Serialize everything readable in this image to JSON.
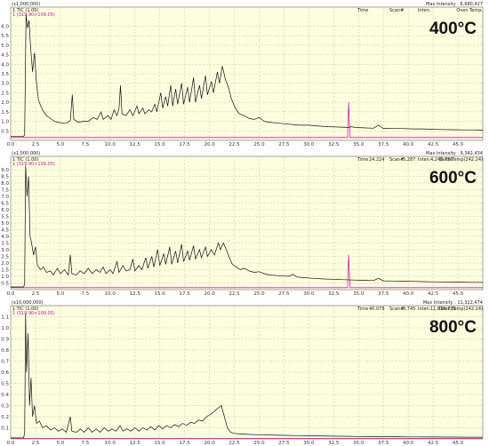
{
  "chart_data": [
    {
      "type": "line",
      "label": "400°C",
      "scale": "(x1,000,000)",
      "trace_tic": "1 TIC (1.00)",
      "trace_mz": "1 (319.90>109.05)",
      "header": {
        "time": "Time",
        "scan": "Scan#",
        "inten": "Inten.",
        "max": "Max Intensity : 6,680,427",
        "oven": "Oven Temp."
      },
      "yticks": [
        "0.5",
        "1.0",
        "1.5",
        "2.0",
        "2.5",
        "3.0",
        "3.5",
        "4.0",
        "4.5",
        "5.0",
        "5.5",
        "6.0"
      ],
      "ylim": [
        0,
        7.0
      ],
      "xlim": [
        0,
        47.5
      ],
      "xticks": [
        "0.0",
        "2.5",
        "5.0",
        "7.5",
        "10.0",
        "12.5",
        "15.0",
        "17.5",
        "20.0",
        "22.5",
        "25.0",
        "27.5",
        "30.0",
        "32.5",
        "35.0",
        "37.5",
        "40.0",
        "42.5",
        "45.0"
      ],
      "tic": [
        [
          0,
          0.2
        ],
        [
          1.3,
          0.2
        ],
        [
          1.4,
          0.3
        ],
        [
          1.55,
          6.6
        ],
        [
          1.7,
          5.9
        ],
        [
          1.85,
          6.3
        ],
        [
          2.0,
          4.9
        ],
        [
          2.2,
          3.6
        ],
        [
          2.4,
          4.6
        ],
        [
          2.6,
          3.0
        ],
        [
          2.8,
          2.1
        ],
        [
          3.2,
          1.6
        ],
        [
          3.6,
          1.3
        ],
        [
          4.0,
          1.15
        ],
        [
          4.4,
          1.0
        ],
        [
          4.8,
          0.95
        ],
        [
          5.2,
          0.9
        ],
        [
          5.6,
          0.9
        ],
        [
          6.0,
          1.05
        ],
        [
          6.2,
          2.4
        ],
        [
          6.35,
          1.1
        ],
        [
          6.8,
          0.95
        ],
        [
          7.3,
          1.0
        ],
        [
          7.8,
          1.0
        ],
        [
          8.3,
          1.2
        ],
        [
          8.7,
          1.1
        ],
        [
          9.1,
          1.5
        ],
        [
          9.3,
          1.1
        ],
        [
          9.8,
          1.3
        ],
        [
          10.1,
          1.1
        ],
        [
          10.4,
          1.6
        ],
        [
          10.7,
          1.3
        ],
        [
          10.9,
          1.7
        ],
        [
          11.05,
          2.9
        ],
        [
          11.2,
          1.4
        ],
        [
          11.6,
          1.3
        ],
        [
          12.0,
          1.6
        ],
        [
          12.3,
          1.3
        ],
        [
          12.7,
          1.8
        ],
        [
          12.9,
          1.4
        ],
        [
          13.3,
          1.7
        ],
        [
          13.5,
          1.4
        ],
        [
          13.9,
          1.6
        ],
        [
          14.2,
          1.5
        ],
        [
          14.5,
          1.9
        ],
        [
          14.7,
          1.5
        ],
        [
          15.1,
          2.5
        ],
        [
          15.3,
          1.7
        ],
        [
          15.6,
          2.3
        ],
        [
          15.8,
          1.8
        ],
        [
          16.1,
          2.9
        ],
        [
          16.3,
          1.8
        ],
        [
          16.6,
          2.7
        ],
        [
          16.8,
          1.9
        ],
        [
          17.2,
          3.0
        ],
        [
          17.4,
          1.9
        ],
        [
          17.8,
          2.8
        ],
        [
          18.0,
          2.0
        ],
        [
          18.4,
          3.3
        ],
        [
          18.6,
          2.0
        ],
        [
          19.0,
          2.9
        ],
        [
          19.2,
          2.2
        ],
        [
          19.6,
          3.4
        ],
        [
          19.8,
          2.4
        ],
        [
          20.2,
          3.1
        ],
        [
          20.4,
          2.5
        ],
        [
          20.8,
          3.6
        ],
        [
          21.0,
          3.0
        ],
        [
          21.3,
          3.9
        ],
        [
          21.6,
          3.2
        ],
        [
          21.9,
          2.8
        ],
        [
          22.2,
          2.2
        ],
        [
          22.6,
          1.7
        ],
        [
          23.0,
          1.4
        ],
        [
          23.5,
          1.3
        ],
        [
          24.0,
          1.15
        ],
        [
          24.5,
          1.1
        ],
        [
          25.0,
          1.2
        ],
        [
          25.5,
          1.0
        ],
        [
          26.0,
          0.95
        ],
        [
          27.0,
          0.9
        ],
        [
          28.0,
          0.85
        ],
        [
          29.0,
          0.8
        ],
        [
          30.0,
          0.8
        ],
        [
          31.0,
          0.75
        ],
        [
          32.0,
          0.72
        ],
        [
          33.0,
          0.7
        ],
        [
          34.0,
          0.68
        ],
        [
          34.3,
          0.72
        ],
        [
          34.6,
          0.68
        ],
        [
          35.5,
          0.66
        ],
        [
          36.5,
          0.64
        ],
        [
          37.0,
          0.8
        ],
        [
          37.5,
          0.63
        ],
        [
          38.5,
          0.62
        ],
        [
          39.5,
          0.62
        ],
        [
          40.5,
          0.6
        ],
        [
          41.5,
          0.6
        ],
        [
          42.5,
          0.58
        ],
        [
          43.5,
          0.57
        ],
        [
          44.5,
          0.56
        ],
        [
          45.5,
          0.55
        ],
        [
          46.5,
          0.55
        ],
        [
          47.5,
          0.54
        ]
      ],
      "mz": [
        [
          0,
          0.15
        ],
        [
          33.9,
          0.15
        ],
        [
          34.0,
          2.0
        ],
        [
          34.15,
          0.15
        ],
        [
          47.5,
          0.15
        ]
      ]
    },
    {
      "type": "line",
      "label": "600°C",
      "scale": "(x1,000,000)",
      "trace_tic": "1 TIC (1.00)",
      "trace_mz": "1 (319.90>109.05)",
      "header": {
        "time": "Time",
        "time_val": "24.224",
        "scan": "Scan#",
        "scan_val": "5,287",
        "inten": "Inten.",
        "inten_val": "4,240,756",
        "max": "Max Intensity : 9,342,434",
        "oven": "Oven Temp(242.24)"
      },
      "yticks": [
        "0.5",
        "1.0",
        "1.5",
        "2.0",
        "2.5",
        "3.0",
        "3.5",
        "4.0",
        "4.5",
        "5.0",
        "5.5",
        "6.0",
        "6.5",
        "7.0",
        "7.5",
        "8.0",
        "8.5",
        "9.0"
      ],
      "ylim": [
        0,
        10.0
      ],
      "xlim": [
        0,
        47.5
      ],
      "xticks": [
        "0.0",
        "2.5",
        "5.0",
        "7.5",
        "10.0",
        "12.5",
        "15.0",
        "17.5",
        "20.0",
        "22.5",
        "25.0",
        "27.5",
        "30.0",
        "32.5",
        "35.0",
        "37.5",
        "40.0",
        "42.5",
        "45.0"
      ],
      "tic": [
        [
          0,
          0.2
        ],
        [
          1.3,
          0.2
        ],
        [
          1.4,
          0.4
        ],
        [
          1.5,
          9.3
        ],
        [
          1.65,
          7.0
        ],
        [
          1.8,
          8.5
        ],
        [
          1.95,
          4.0
        ],
        [
          2.1,
          3.5
        ],
        [
          2.3,
          2.6
        ],
        [
          2.5,
          3.2
        ],
        [
          2.7,
          1.8
        ],
        [
          3.0,
          1.5
        ],
        [
          3.3,
          1.7
        ],
        [
          3.6,
          1.3
        ],
        [
          4.0,
          1.4
        ],
        [
          4.3,
          1.1
        ],
        [
          4.7,
          1.6
        ],
        [
          5.0,
          1.2
        ],
        [
          5.4,
          1.5
        ],
        [
          5.8,
          1.1
        ],
        [
          6.0,
          2.6
        ],
        [
          6.15,
          1.2
        ],
        [
          6.6,
          1.1
        ],
        [
          7.0,
          1.4
        ],
        [
          7.4,
          1.2
        ],
        [
          7.8,
          1.6
        ],
        [
          8.2,
          1.2
        ],
        [
          8.6,
          1.5
        ],
        [
          9.0,
          1.3
        ],
        [
          9.3,
          1.7
        ],
        [
          9.6,
          1.2
        ],
        [
          10.0,
          1.5
        ],
        [
          10.3,
          1.2
        ],
        [
          10.7,
          2.1
        ],
        [
          10.9,
          1.3
        ],
        [
          11.3,
          1.8
        ],
        [
          11.6,
          1.4
        ],
        [
          12.0,
          1.5
        ],
        [
          12.3,
          2.3
        ],
        [
          12.5,
          1.4
        ],
        [
          12.9,
          1.8
        ],
        [
          13.2,
          1.5
        ],
        [
          13.6,
          2.4
        ],
        [
          13.8,
          1.6
        ],
        [
          14.2,
          2.5
        ],
        [
          14.4,
          1.7
        ],
        [
          14.8,
          3.0
        ],
        [
          15.0,
          1.8
        ],
        [
          15.4,
          2.7
        ],
        [
          15.6,
          1.9
        ],
        [
          16.0,
          3.2
        ],
        [
          16.2,
          1.9
        ],
        [
          16.6,
          2.9
        ],
        [
          16.8,
          2.0
        ],
        [
          17.2,
          3.4
        ],
        [
          17.4,
          2.1
        ],
        [
          17.8,
          2.9
        ],
        [
          18.0,
          2.2
        ],
        [
          18.4,
          3.3
        ],
        [
          18.6,
          2.3
        ],
        [
          19.0,
          3.0
        ],
        [
          19.2,
          2.4
        ],
        [
          19.6,
          3.2
        ],
        [
          19.8,
          2.5
        ],
        [
          20.2,
          3.0
        ],
        [
          20.5,
          2.6
        ],
        [
          20.9,
          3.5
        ],
        [
          21.1,
          3.0
        ],
        [
          21.4,
          3.5
        ],
        [
          21.7,
          3.0
        ],
        [
          22.0,
          2.4
        ],
        [
          22.3,
          1.9
        ],
        [
          22.7,
          1.7
        ],
        [
          23.1,
          1.5
        ],
        [
          23.5,
          1.6
        ],
        [
          24.0,
          1.4
        ],
        [
          24.5,
          1.3
        ],
        [
          25.0,
          1.35
        ],
        [
          25.5,
          1.2
        ],
        [
          26.0,
          1.1
        ],
        [
          27.0,
          1.05
        ],
        [
          28.0,
          1.0
        ],
        [
          28.4,
          1.15
        ],
        [
          28.8,
          0.95
        ],
        [
          29.5,
          0.9
        ],
        [
          30.5,
          0.85
        ],
        [
          31.5,
          0.8
        ],
        [
          32.5,
          0.78
        ],
        [
          33.5,
          0.75
        ],
        [
          34.5,
          0.72
        ],
        [
          35.5,
          0.7
        ],
        [
          36.5,
          0.68
        ],
        [
          37.0,
          0.85
        ],
        [
          37.5,
          0.66
        ],
        [
          38.5,
          0.65
        ],
        [
          39.5,
          0.64
        ],
        [
          40.5,
          0.62
        ],
        [
          41.5,
          0.6
        ],
        [
          42.5,
          0.59
        ],
        [
          43.5,
          0.58
        ],
        [
          44.5,
          0.57
        ],
        [
          45.5,
          0.56
        ],
        [
          46.5,
          0.55
        ],
        [
          47.5,
          0.55
        ]
      ],
      "mz": [
        [
          0,
          0.15
        ],
        [
          33.9,
          0.15
        ],
        [
          34.0,
          2.6
        ],
        [
          34.15,
          0.15
        ],
        [
          47.5,
          0.15
        ]
      ]
    },
    {
      "type": "line",
      "label": "800°C",
      "scale": "(x10,000,000)",
      "trace_tic": "1 TIC (1.00)",
      "trace_mz": "1 (319.90>109.05)",
      "header": {
        "time": "Time",
        "time_val": "40.078",
        "scan": "Scan#",
        "scan_val": "8,745",
        "inten": "Inten.",
        "inten_val": "11,630,733",
        "max": "Max Intensity : 11,322,474",
        "oven": "Oven Temp(242.24)"
      },
      "yticks": [
        "0.1",
        "0.2",
        "0.3",
        "0.4",
        "0.5",
        "0.6",
        "0.7",
        "0.8",
        "0.9",
        "1.0",
        "1.1"
      ],
      "ylim": [
        0,
        1.2
      ],
      "xlim": [
        0,
        47.5
      ],
      "xticks": [
        "0.0",
        "2.5",
        "5.0",
        "7.5",
        "10.0",
        "12.5",
        "15.0",
        "17.5",
        "20.0",
        "22.5",
        "25.0",
        "27.5",
        "30.0",
        "32.5",
        "35.0",
        "37.5",
        "40.0",
        "42.5",
        "45.0"
      ],
      "tic": [
        [
          0,
          0.01
        ],
        [
          1.3,
          0.01
        ],
        [
          1.4,
          0.05
        ],
        [
          1.5,
          1.13
        ],
        [
          1.6,
          0.6
        ],
        [
          1.75,
          0.95
        ],
        [
          1.9,
          0.3
        ],
        [
          2.05,
          0.55
        ],
        [
          2.2,
          0.2
        ],
        [
          2.4,
          0.3
        ],
        [
          2.6,
          0.14
        ],
        [
          2.9,
          0.16
        ],
        [
          3.2,
          0.1
        ],
        [
          3.6,
          0.12
        ],
        [
          4.0,
          0.08
        ],
        [
          4.4,
          0.1
        ],
        [
          4.8,
          0.07
        ],
        [
          5.2,
          0.09
        ],
        [
          5.6,
          0.06
        ],
        [
          6.0,
          0.2
        ],
        [
          6.15,
          0.07
        ],
        [
          6.6,
          0.06
        ],
        [
          7.0,
          0.09
        ],
        [
          7.4,
          0.06
        ],
        [
          7.8,
          0.1
        ],
        [
          8.2,
          0.06
        ],
        [
          8.6,
          0.09
        ],
        [
          9.0,
          0.06
        ],
        [
          9.4,
          0.1
        ],
        [
          9.8,
          0.07
        ],
        [
          10.2,
          0.09
        ],
        [
          10.6,
          0.07
        ],
        [
          11.0,
          0.12
        ],
        [
          11.3,
          0.07
        ],
        [
          11.7,
          0.09
        ],
        [
          12.1,
          0.07
        ],
        [
          12.5,
          0.1
        ],
        [
          12.9,
          0.07
        ],
        [
          13.3,
          0.1
        ],
        [
          13.7,
          0.08
        ],
        [
          14.1,
          0.11
        ],
        [
          14.5,
          0.08
        ],
        [
          14.9,
          0.12
        ],
        [
          15.3,
          0.09
        ],
        [
          15.7,
          0.12
        ],
        [
          16.1,
          0.1
        ],
        [
          16.5,
          0.13
        ],
        [
          16.9,
          0.11
        ],
        [
          17.3,
          0.14
        ],
        [
          17.7,
          0.12
        ],
        [
          18.1,
          0.15
        ],
        [
          18.5,
          0.14
        ],
        [
          18.9,
          0.17
        ],
        [
          19.3,
          0.16
        ],
        [
          19.7,
          0.2
        ],
        [
          20.1,
          0.22
        ],
        [
          20.5,
          0.25
        ],
        [
          20.9,
          0.28
        ],
        [
          21.2,
          0.3
        ],
        [
          21.5,
          0.2
        ],
        [
          21.8,
          0.1
        ],
        [
          22.1,
          0.06
        ],
        [
          22.5,
          0.05
        ],
        [
          23.0,
          0.045
        ],
        [
          24.0,
          0.04
        ],
        [
          25.0,
          0.038
        ],
        [
          26.0,
          0.035
        ],
        [
          27.0,
          0.033
        ],
        [
          28.0,
          0.031
        ],
        [
          29.0,
          0.03
        ],
        [
          30.0,
          0.028
        ],
        [
          31.0,
          0.027
        ],
        [
          32.0,
          0.025
        ],
        [
          33.0,
          0.024
        ],
        [
          34.0,
          0.023
        ],
        [
          35.0,
          0.022
        ],
        [
          36.0,
          0.021
        ],
        [
          37.0,
          0.02
        ],
        [
          38.0,
          0.02
        ],
        [
          39.0,
          0.019
        ],
        [
          40.0,
          0.018
        ],
        [
          41.0,
          0.018
        ],
        [
          42.0,
          0.017
        ],
        [
          43.0,
          0.017
        ],
        [
          44.0,
          0.016
        ],
        [
          45.0,
          0.016
        ],
        [
          46.0,
          0.015
        ],
        [
          47.5,
          0.015
        ]
      ],
      "mz": [
        [
          0,
          0.005
        ],
        [
          47.5,
          0.005
        ]
      ]
    }
  ]
}
